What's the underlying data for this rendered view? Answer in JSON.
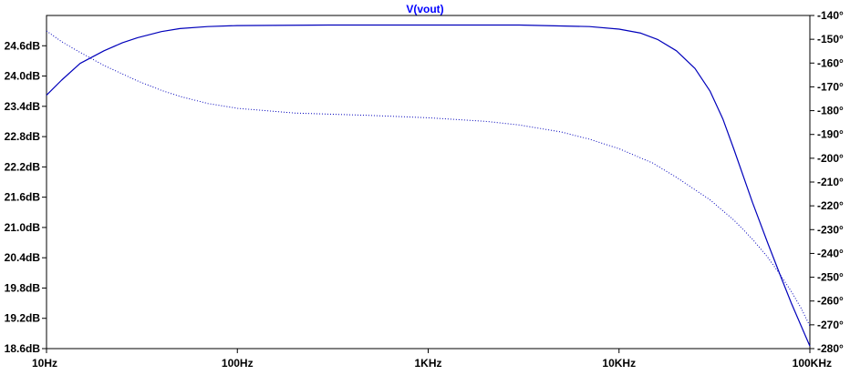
{
  "chart_data": {
    "type": "line",
    "title": "V(vout)",
    "x_scale": "log",
    "xlim": [
      10,
      100000
    ],
    "x_ticks": [
      {
        "value": 10,
        "label": "10Hz"
      },
      {
        "value": 100,
        "label": "100Hz"
      },
      {
        "value": 1000,
        "label": "1KHz"
      },
      {
        "value": 10000,
        "label": "10KHz"
      },
      {
        "value": 100000,
        "label": "100KHz"
      }
    ],
    "y_left": {
      "unit": "dB",
      "ylim": [
        18.6,
        25.2
      ],
      "ticks": [
        {
          "value": 24.6,
          "label": "24.6dB"
        },
        {
          "value": 24.0,
          "label": "24.0dB"
        },
        {
          "value": 23.4,
          "label": "23.4dB"
        },
        {
          "value": 22.8,
          "label": "22.8dB"
        },
        {
          "value": 22.2,
          "label": "22.2dB"
        },
        {
          "value": 21.6,
          "label": "21.6dB"
        },
        {
          "value": 21.0,
          "label": "21.0dB"
        },
        {
          "value": 20.4,
          "label": "20.4dB"
        },
        {
          "value": 19.8,
          "label": "19.8dB"
        },
        {
          "value": 19.2,
          "label": "19.2dB"
        },
        {
          "value": 18.6,
          "label": "18.6dB"
        }
      ]
    },
    "y_right": {
      "unit": "degrees",
      "ylim": [
        -280,
        -140
      ],
      "ticks": [
        {
          "value": -140,
          "label": "-140°"
        },
        {
          "value": -150,
          "label": "-150°"
        },
        {
          "value": -160,
          "label": "-160°"
        },
        {
          "value": -170,
          "label": "-170°"
        },
        {
          "value": -180,
          "label": "-180°"
        },
        {
          "value": -190,
          "label": "-190°"
        },
        {
          "value": -200,
          "label": "-200°"
        },
        {
          "value": -210,
          "label": "-210°"
        },
        {
          "value": -220,
          "label": "-220°"
        },
        {
          "value": -230,
          "label": "-230°"
        },
        {
          "value": -240,
          "label": "-240°"
        },
        {
          "value": -250,
          "label": "-250°"
        },
        {
          "value": -260,
          "label": "-260°"
        },
        {
          "value": -270,
          "label": "-270°"
        },
        {
          "value": -280,
          "label": "-280°"
        }
      ]
    },
    "series": [
      {
        "axis": "left",
        "style": "solid",
        "color": "#0000bb",
        "points": [
          [
            10,
            23.62
          ],
          [
            12,
            23.92
          ],
          [
            15,
            24.25
          ],
          [
            20,
            24.5
          ],
          [
            25,
            24.66
          ],
          [
            30,
            24.76
          ],
          [
            40,
            24.88
          ],
          [
            50,
            24.94
          ],
          [
            70,
            24.98
          ],
          [
            100,
            25.0
          ],
          [
            300,
            25.01
          ],
          [
            1000,
            25.01
          ],
          [
            3000,
            25.01
          ],
          [
            7000,
            24.98
          ],
          [
            10000,
            24.93
          ],
          [
            13000,
            24.85
          ],
          [
            16000,
            24.72
          ],
          [
            20000,
            24.5
          ],
          [
            25000,
            24.15
          ],
          [
            30000,
            23.7
          ],
          [
            35000,
            23.15
          ],
          [
            40000,
            22.55
          ],
          [
            50000,
            21.5
          ],
          [
            60000,
            20.7
          ],
          [
            70000,
            20.05
          ],
          [
            80000,
            19.5
          ],
          [
            90000,
            19.05
          ],
          [
            100000,
            18.65
          ]
        ]
      },
      {
        "axis": "right",
        "style": "dotted",
        "color": "#0000bb",
        "points": [
          [
            10,
            -146.5
          ],
          [
            12,
            -151
          ],
          [
            15,
            -155.5
          ],
          [
            20,
            -161
          ],
          [
            30,
            -167.5
          ],
          [
            40,
            -171.5
          ],
          [
            50,
            -174
          ],
          [
            70,
            -177
          ],
          [
            100,
            -179
          ],
          [
            200,
            -181
          ],
          [
            500,
            -182
          ],
          [
            1000,
            -183
          ],
          [
            2000,
            -184.5
          ],
          [
            3000,
            -186
          ],
          [
            5000,
            -189
          ],
          [
            7000,
            -192
          ],
          [
            10000,
            -196
          ],
          [
            15000,
            -202
          ],
          [
            20000,
            -208
          ],
          [
            30000,
            -217.5
          ],
          [
            40000,
            -226
          ],
          [
            50000,
            -234
          ],
          [
            60000,
            -241.5
          ],
          [
            70000,
            -249
          ],
          [
            80000,
            -256
          ],
          [
            90000,
            -263
          ],
          [
            100000,
            -270.5
          ]
        ]
      }
    ]
  }
}
